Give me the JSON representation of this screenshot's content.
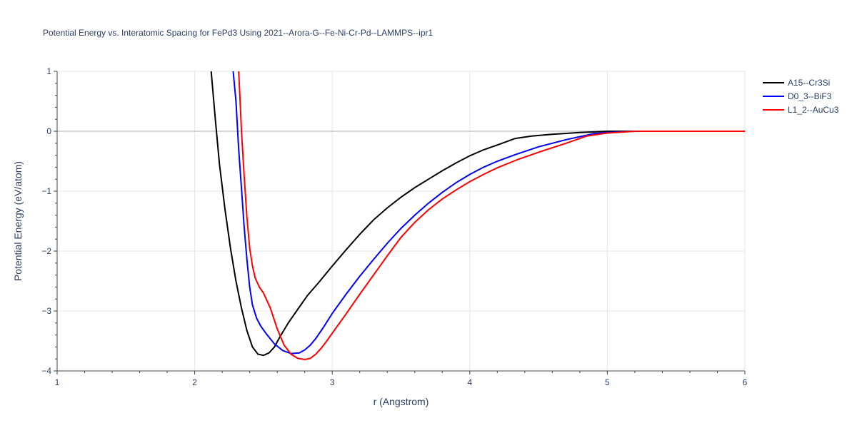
{
  "chart_data": {
    "type": "line",
    "title": "Potential Energy vs. Interatomic Spacing for FePd3 Using 2021--Arora-G--Fe-Ni-Cr-Pd--LAMMPS--ipr1",
    "xlabel": "r (Angstrom)",
    "ylabel": "Potential Energy (eV/atom)",
    "xlim": [
      1,
      6
    ],
    "ylim": [
      -4,
      1
    ],
    "xticks": [
      1,
      2,
      3,
      4,
      5,
      6
    ],
    "yticks": [
      -4,
      -3,
      -2,
      -1,
      0,
      1
    ],
    "xtick_labels": [
      "1",
      "2",
      "3",
      "4",
      "5",
      "6"
    ],
    "ytick_labels": [
      "−4",
      "−3",
      "−2",
      "−1",
      "0",
      "1"
    ],
    "grid": true,
    "legend_position": "top-right",
    "series": [
      {
        "name": "A15--Cr3Si",
        "color": "#000000",
        "x": [
          2.12,
          2.15,
          2.18,
          2.22,
          2.26,
          2.3,
          2.34,
          2.38,
          2.42,
          2.46,
          2.5,
          2.54,
          2.58,
          2.62,
          2.68,
          2.75,
          2.82,
          2.9,
          3.0,
          3.1,
          3.2,
          3.3,
          3.4,
          3.5,
          3.6,
          3.7,
          3.8,
          3.9,
          4.0,
          4.1,
          4.2,
          4.33,
          4.45,
          4.6,
          4.8,
          5.0,
          5.2,
          5.5,
          6.0
        ],
        "y": [
          1.0,
          0.2,
          -0.55,
          -1.3,
          -1.95,
          -2.5,
          -2.95,
          -3.33,
          -3.6,
          -3.72,
          -3.74,
          -3.7,
          -3.6,
          -3.43,
          -3.2,
          -2.97,
          -2.74,
          -2.53,
          -2.25,
          -1.98,
          -1.72,
          -1.48,
          -1.28,
          -1.1,
          -0.94,
          -0.8,
          -0.66,
          -0.53,
          -0.41,
          -0.31,
          -0.23,
          -0.12,
          -0.08,
          -0.05,
          -0.02,
          0.0,
          0.0,
          0.0,
          0.0
        ]
      },
      {
        "name": "D0_3--BiF3",
        "color": "#0000ff",
        "x": [
          2.28,
          2.3,
          2.32,
          2.34,
          2.36,
          2.38,
          2.4,
          2.42,
          2.45,
          2.48,
          2.52,
          2.58,
          2.64,
          2.7,
          2.76,
          2.8,
          2.84,
          2.88,
          2.94,
          3.0,
          3.1,
          3.2,
          3.3,
          3.4,
          3.5,
          3.6,
          3.7,
          3.8,
          3.9,
          4.0,
          4.1,
          4.2,
          4.33,
          4.5,
          4.7,
          4.9,
          5.0,
          5.2,
          5.5,
          6.0
        ],
        "y": [
          1.0,
          0.5,
          -0.3,
          -0.95,
          -1.6,
          -2.15,
          -2.6,
          -2.9,
          -3.12,
          -3.25,
          -3.38,
          -3.55,
          -3.66,
          -3.71,
          -3.7,
          -3.65,
          -3.57,
          -3.46,
          -3.26,
          -3.04,
          -2.72,
          -2.42,
          -2.14,
          -1.87,
          -1.62,
          -1.4,
          -1.2,
          -1.02,
          -0.86,
          -0.72,
          -0.6,
          -0.5,
          -0.39,
          -0.26,
          -0.14,
          -0.04,
          -0.02,
          0.0,
          0.0,
          0.0
        ]
      },
      {
        "name": "L1_2--AuCu3",
        "color": "#ff0000",
        "x": [
          2.32,
          2.33,
          2.34,
          2.36,
          2.38,
          2.4,
          2.42,
          2.44,
          2.47,
          2.5,
          2.55,
          2.6,
          2.65,
          2.7,
          2.75,
          2.8,
          2.84,
          2.88,
          2.92,
          2.96,
          3.0,
          3.1,
          3.2,
          3.3,
          3.4,
          3.5,
          3.6,
          3.7,
          3.8,
          3.9,
          4.0,
          4.1,
          4.2,
          4.35,
          4.5,
          4.7,
          4.85,
          5.0,
          5.2,
          5.5,
          6.0
        ],
        "y": [
          1.0,
          0.5,
          0.0,
          -0.75,
          -1.45,
          -1.95,
          -2.25,
          -2.45,
          -2.6,
          -2.7,
          -2.95,
          -3.3,
          -3.57,
          -3.72,
          -3.79,
          -3.81,
          -3.79,
          -3.72,
          -3.62,
          -3.5,
          -3.37,
          -3.05,
          -2.72,
          -2.4,
          -2.08,
          -1.77,
          -1.52,
          -1.31,
          -1.13,
          -0.98,
          -0.84,
          -0.72,
          -0.61,
          -0.47,
          -0.35,
          -0.2,
          -0.08,
          -0.03,
          0.0,
          0.0,
          0.0
        ]
      }
    ]
  }
}
